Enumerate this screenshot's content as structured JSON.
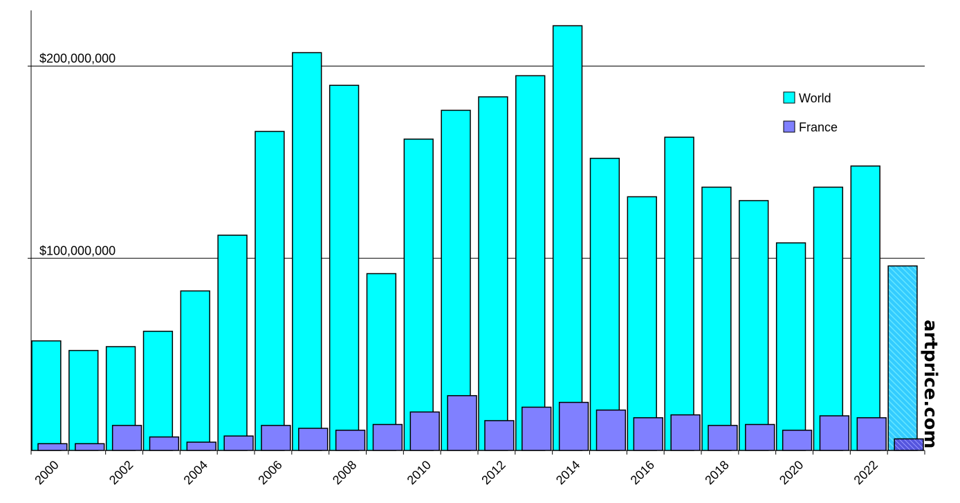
{
  "chart_data": {
    "type": "bar",
    "title": "",
    "xlabel": "",
    "ylabel": "",
    "categories": [
      "2000",
      "2001",
      "2002",
      "2003",
      "2004",
      "2005",
      "2006",
      "2007",
      "2008",
      "2009",
      "2010",
      "2011",
      "2012",
      "2013",
      "2014",
      "2015",
      "2016",
      "2017",
      "2018",
      "2019",
      "2020",
      "2021",
      "2022",
      "2023"
    ],
    "x_tick_labels": [
      "2000",
      "2002",
      "2004",
      "2006",
      "2008",
      "2010",
      "2012",
      "2014",
      "2016",
      "2018",
      "2020",
      "2022"
    ],
    "y_tick_labels": [
      "$100,000,000",
      "$200,000,000"
    ],
    "y_ticks": [
      100000000,
      200000000
    ],
    "ylim": [
      0,
      229000000
    ],
    "grid": true,
    "legend_position": "top-right",
    "series": [
      {
        "name": "World",
        "color": "#00ffff",
        "values": [
          57000000,
          52000000,
          54000000,
          62000000,
          83000000,
          112000000,
          166000000,
          207000000,
          190000000,
          92000000,
          162000000,
          177000000,
          184000000,
          195000000,
          221000000,
          152000000,
          132000000,
          163000000,
          137000000,
          130000000,
          108000000,
          137000000,
          148000000,
          96000000
        ],
        "hatched_last": true
      },
      {
        "name": "France",
        "color": "#8080ff",
        "values": [
          3500000,
          3500000,
          13000000,
          7000000,
          4300000,
          7500000,
          13000000,
          11500000,
          10500000,
          13500000,
          20000000,
          28500000,
          15500000,
          22500000,
          25000000,
          21000000,
          17000000,
          18500000,
          13000000,
          13500000,
          10500000,
          18000000,
          17000000,
          6000000
        ],
        "hatched_last": true
      }
    ],
    "watermark": "artprice.com"
  }
}
